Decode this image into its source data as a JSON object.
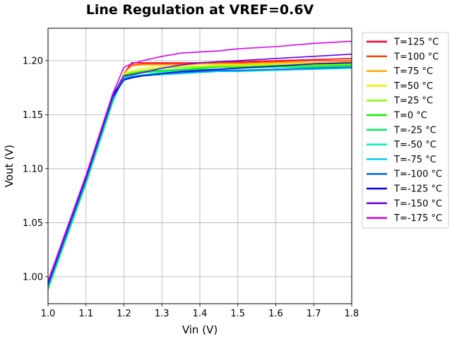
{
  "chart_data": {
    "type": "line",
    "title": "Line Regulation at VREF=0.6V",
    "xlabel": "Vin (V)",
    "ylabel": "Vout (V)",
    "xlim": [
      1.0,
      1.8
    ],
    "ylim": [
      0.975,
      1.23
    ],
    "xticks": [
      "1.0",
      "1.1",
      "1.2",
      "1.3",
      "1.4",
      "1.5",
      "1.6",
      "1.7",
      "1.8"
    ],
    "yticks": [
      "1.00",
      "1.05",
      "1.10",
      "1.15",
      "1.20"
    ],
    "grid": true,
    "legend_position": "outside-right-top",
    "x": [
      1.0,
      1.1,
      1.17,
      1.2,
      1.22,
      1.25,
      1.3,
      1.35,
      1.4,
      1.45,
      1.5,
      1.6,
      1.7,
      1.8
    ],
    "series": [
      {
        "name": "T=125 °C",
        "color": "#ff0022",
        "values": [
          0.993,
          1.09,
          1.165,
          1.188,
          1.198,
          1.198,
          1.198,
          1.198,
          1.198,
          1.199,
          1.199,
          1.2,
          1.201,
          1.202
        ]
      },
      {
        "name": "T=100 °C",
        "color": "#ff4400",
        "values": [
          0.992,
          1.089,
          1.164,
          1.188,
          1.196,
          1.197,
          1.197,
          1.197,
          1.197,
          1.198,
          1.198,
          1.199,
          1.2,
          1.2
        ]
      },
      {
        "name": "T=75 °C",
        "color": "#ffaa00",
        "values": [
          0.991,
          1.088,
          1.163,
          1.188,
          1.195,
          1.196,
          1.196,
          1.196,
          1.197,
          1.197,
          1.197,
          1.198,
          1.198,
          1.199
        ]
      },
      {
        "name": "T=50 °C",
        "color": "#eeee00",
        "values": [
          0.99,
          1.087,
          1.162,
          1.188,
          1.19,
          1.193,
          1.194,
          1.195,
          1.195,
          1.196,
          1.196,
          1.197,
          1.197,
          1.198
        ]
      },
      {
        "name": "T=25 °C",
        "color": "#88ff00",
        "values": [
          0.989,
          1.086,
          1.161,
          1.187,
          1.189,
          1.191,
          1.193,
          1.194,
          1.194,
          1.195,
          1.195,
          1.196,
          1.196,
          1.197
        ]
      },
      {
        "name": "T=0 °C",
        "color": "#11ee00",
        "values": [
          0.988,
          1.086,
          1.161,
          1.186,
          1.188,
          1.19,
          1.191,
          1.192,
          1.193,
          1.194,
          1.194,
          1.195,
          1.195,
          1.196
        ]
      },
      {
        "name": "T=-25 °C",
        "color": "#00ee66",
        "values": [
          0.989,
          1.087,
          1.162,
          1.185,
          1.187,
          1.189,
          1.19,
          1.191,
          1.192,
          1.192,
          1.193,
          1.194,
          1.194,
          1.195
        ]
      },
      {
        "name": "T=-50 °C",
        "color": "#00eebb",
        "values": [
          0.99,
          1.088,
          1.163,
          1.184,
          1.186,
          1.187,
          1.189,
          1.19,
          1.19,
          1.191,
          1.191,
          1.192,
          1.193,
          1.194
        ]
      },
      {
        "name": "T=-75 °C",
        "color": "#00ccee",
        "values": [
          0.991,
          1.089,
          1.164,
          1.183,
          1.185,
          1.186,
          1.187,
          1.188,
          1.189,
          1.19,
          1.19,
          1.191,
          1.192,
          1.193
        ]
      },
      {
        "name": "T=-100 °C",
        "color": "#0066ee",
        "values": [
          0.992,
          1.09,
          1.165,
          1.183,
          1.185,
          1.186,
          1.188,
          1.189,
          1.19,
          1.191,
          1.191,
          1.192,
          1.193,
          1.194
        ]
      },
      {
        "name": "T=-125 °C",
        "color": "#0000ee",
        "values": [
          0.994,
          1.092,
          1.167,
          1.182,
          1.184,
          1.186,
          1.188,
          1.19,
          1.191,
          1.192,
          1.193,
          1.195,
          1.197,
          1.198
        ]
      },
      {
        "name": "T=-150 °C",
        "color": "#6600ee",
        "values": [
          0.995,
          1.093,
          1.168,
          1.186,
          1.187,
          1.189,
          1.193,
          1.196,
          1.198,
          1.199,
          1.2,
          1.202,
          1.204,
          1.206
        ]
      },
      {
        "name": "T=-175 °C",
        "color": "#dd00ee",
        "values": [
          0.996,
          1.094,
          1.169,
          1.194,
          1.197,
          1.2,
          1.204,
          1.207,
          1.208,
          1.209,
          1.211,
          1.213,
          1.216,
          1.218
        ]
      }
    ]
  }
}
